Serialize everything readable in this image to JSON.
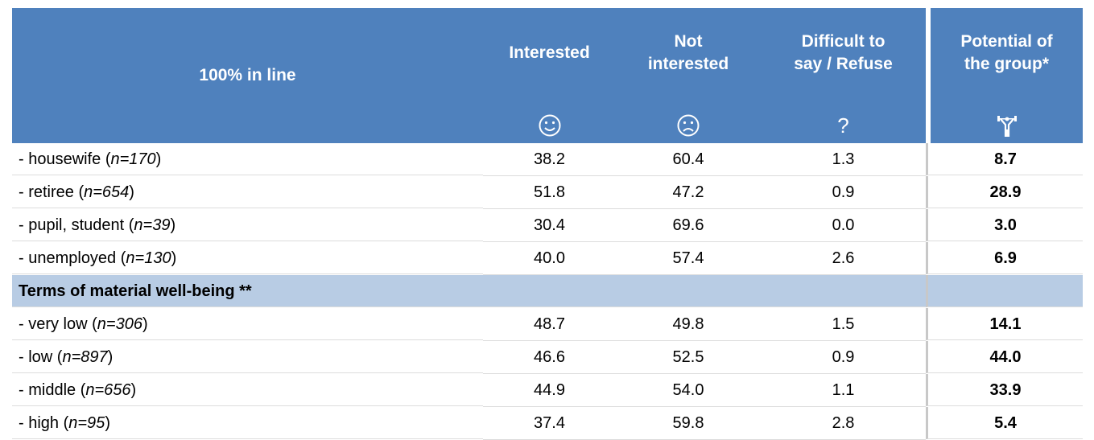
{
  "header": {
    "corner": "100% in line",
    "columns": [
      {
        "lines": [
          "Interested"
        ]
      },
      {
        "lines": [
          "Not",
          "interested"
        ]
      },
      {
        "lines": [
          "Difficult to",
          "say / Refuse"
        ],
        "icon": "?"
      },
      {
        "lines": [
          "Potential of",
          "the group*"
        ]
      }
    ]
  },
  "table": {
    "rows": [
      {
        "label": [
          "- housewife (",
          "n=170",
          ")"
        ],
        "cells": [
          "38.2",
          "60.4",
          "1.3",
          "8.7"
        ]
      },
      {
        "label": [
          "- retiree (",
          "n=654",
          ")"
        ],
        "cells": [
          "51.8",
          "47.2",
          "0.9",
          "28.9"
        ]
      },
      {
        "label": [
          "- pupil, student (",
          "n=39",
          ")"
        ],
        "cells": [
          "30.4",
          "69.6",
          "0.0",
          "3.0"
        ]
      },
      {
        "label": [
          "- unemployed (",
          "n=130",
          ")"
        ],
        "cells": [
          "40.0",
          "57.4",
          "2.6",
          "6.9"
        ]
      },
      {
        "section": "Terms of material well-being **"
      },
      {
        "label": [
          "- very low (",
          "n=306",
          ")"
        ],
        "cells": [
          "48.7",
          "49.8",
          "1.5",
          "14.1"
        ]
      },
      {
        "label": [
          "- low (",
          "n=897",
          ")"
        ],
        "cells": [
          "46.6",
          "52.5",
          "0.9",
          "44.0"
        ]
      },
      {
        "label": [
          "- middle (",
          "n=656",
          ")"
        ],
        "cells": [
          "44.9",
          "54.0",
          "1.1",
          "33.9"
        ]
      },
      {
        "label": [
          "- high (",
          "n=95",
          ")"
        ],
        "cells": [
          "37.4",
          "59.8",
          "2.8",
          "5.4"
        ]
      }
    ]
  }
}
